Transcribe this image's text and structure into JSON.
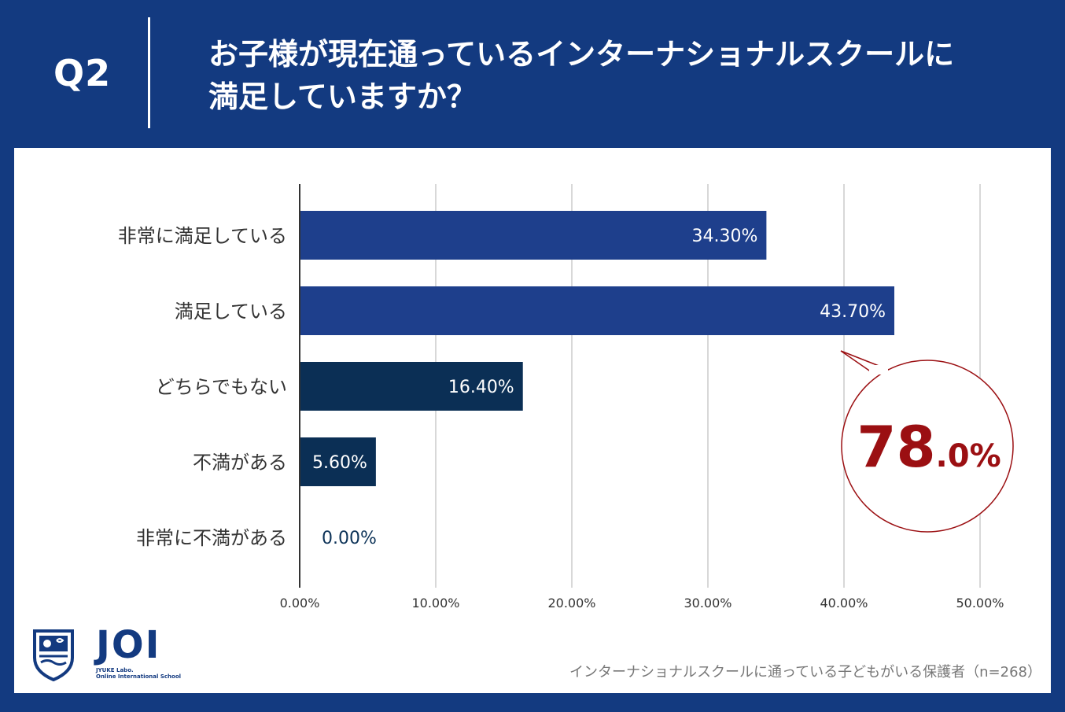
{
  "header": {
    "question_number": "Q2",
    "title_line1": "お子様が現在通っているインターナショナルスクールに",
    "title_line2": "満足していますか？"
  },
  "chart_data": {
    "type": "bar",
    "orientation": "horizontal",
    "categories": [
      "非常に満足している",
      "満足している",
      "どちらでもない",
      "不満がある",
      "非常に不満がある"
    ],
    "values": [
      34.3,
      43.7,
      16.4,
      5.6,
      0.0
    ],
    "value_labels": [
      "34.30%",
      "43.70%",
      "16.40%",
      "5.60%",
      "0.00%"
    ],
    "bar_colors": [
      "#1e3f8c",
      "#1e3f8c",
      "#0b2f55",
      "#0b2f55",
      "#0b2f55"
    ],
    "xlim": [
      0,
      50
    ],
    "ticks": [
      0,
      10,
      20,
      30,
      40,
      50
    ],
    "tick_labels": [
      "0.00%",
      "10.00%",
      "20.00%",
      "30.00%",
      "40.00%",
      "50.00%"
    ],
    "grid": true,
    "annotation": {
      "value_main": "78",
      "value_sub": ".0%",
      "color": "#9b0f12"
    }
  },
  "logo": {
    "name": "JOI",
    "subtitle_line1": "JYUKE Labo.",
    "subtitle_line2": "Online International School"
  },
  "footnote": "インターナショナルスクールに通っている子どもがいる保護者（n=268）",
  "colors": {
    "background": "#133a80",
    "panel": "#ffffff"
  }
}
